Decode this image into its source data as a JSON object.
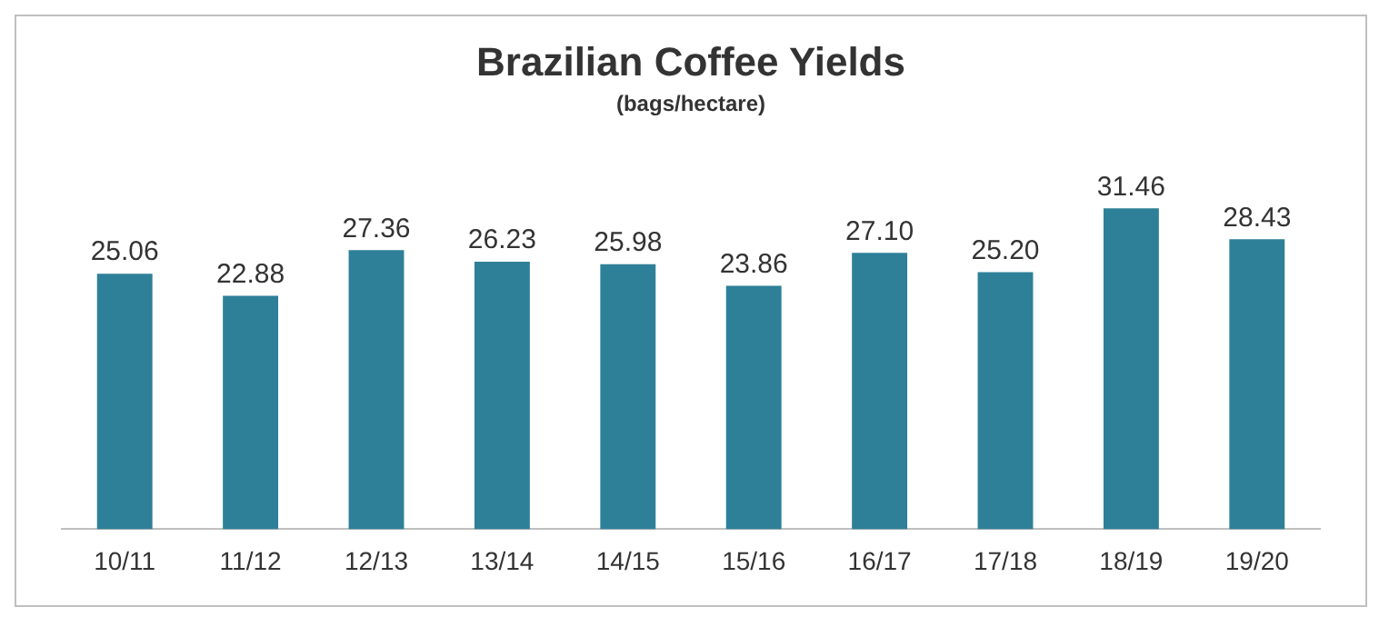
{
  "chart_data": {
    "type": "bar",
    "title": "Brazilian Coffee Yields",
    "subtitle": "(bags/hectare)",
    "categories": [
      "10/11",
      "11/12",
      "12/13",
      "13/14",
      "14/15",
      "15/16",
      "16/17",
      "17/18",
      "18/19",
      "19/20"
    ],
    "values": [
      25.06,
      22.88,
      27.36,
      26.23,
      25.98,
      23.86,
      27.1,
      25.2,
      31.46,
      28.43
    ],
    "value_labels": [
      "25.06",
      "22.88",
      "27.36",
      "26.23",
      "25.98",
      "23.86",
      "27.10",
      "25.20",
      "31.46",
      "28.43"
    ],
    "color": "#2e8099",
    "grid": false,
    "legend": false
  }
}
